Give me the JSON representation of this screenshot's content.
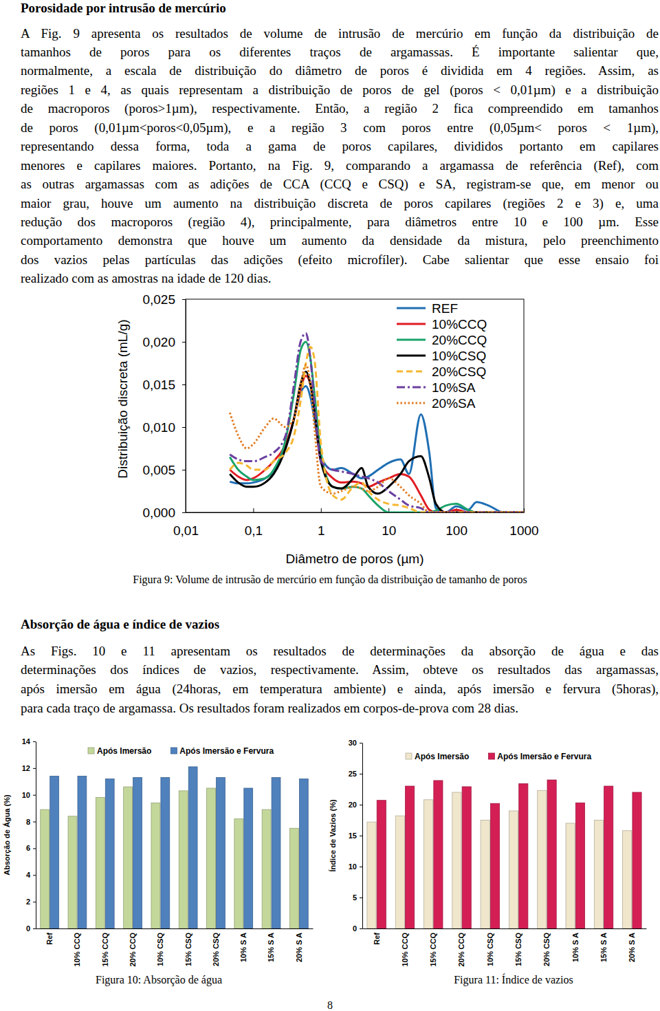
{
  "heading1": "Porosidade por intrusão de mercúrio",
  "paragraph1": [
    "A Fig. 9 apresenta os resultados de volume de intrusão de mercúrio em função da distribuição de",
    "tamanhos de poros para os diferentes traços de argamassas. É importante salientar que,",
    "normalmente, a escala de distribuição do diâmetro de poros é dividida em 4 regiões. Assim, as",
    "regiões 1 e 4, as quais representam a distribuição de poros de gel (poros < 0,01µm) e a distribuição",
    "de macroporos (poros>1µm), respectivamente. Então, a região 2 fica compreendido em tamanhos",
    "de poros (0,01µm<poros<0,05µm), e a região 3 com poros entre (0,05µm< poros < 1µm),",
    "representando dessa forma, toda a gama de poros capilares, divididos portanto em capilares",
    "menores e capilares maiores. Portanto, na Fig. 9, comparando a argamassa de referência (Ref), com",
    "as outras argamassas com as adições de CCA (CCQ e CSQ) e SA, registram-se que, em menor ou",
    "maior grau, houve um aumento na distribuição discreta de poros capilares (regiões 2 e 3) e, uma",
    "redução dos macroporos (região 4), principalmente, para diâmetros entre 10 e 100 µm. Esse",
    "comportamento demonstra que houve um aumento da densidade da mistura, pelo preenchimento",
    "dos vazios pelas partículas das adições (efeito microfíler). Cabe salientar que esse ensaio foi",
    "realizado com as amostras na idade de 120 dias."
  ],
  "heading2": "Absorção de água e índice de vazios",
  "paragraph2": [
    "As Figs. 10 e 11 apresentam os resultados de determinações da absorção de água e das",
    "determinações dos índices de vazios, respectivamente. Assim, obteve os resultados das argamassas,",
    "após imersão em água (24horas, em temperatura ambiente) e ainda, após imersão e fervura (5horas),",
    "para cada traço de argamassa. Os resultados foram realizados em corpos-de-prova com 28 dias."
  ],
  "figure_captions": [
    "Figura 9: Volume de intrusão de mercúrio em função da distribuição de tamanho de poros",
    "Figura 10: Absorção de água",
    "Figura 11: Índice de vazios"
  ],
  "page_number": "8",
  "chart_data": [
    {
      "type": "line",
      "x_label": "Diâmetro de poros (µm)",
      "y_label": "Distribuição discreta (mL/g)",
      "log": "x",
      "grid": false,
      "legend": "top right",
      "xlim": [
        0.01,
        1000
      ],
      "xticks": [
        {
          "value": 0.01,
          "label": "0,01"
        },
        {
          "value": 0.1,
          "label": "0,1"
        },
        1,
        10,
        100,
        1000
      ],
      "ylim": [
        0,
        0.025
      ],
      "yticks": [
        {
          "value": 0,
          "label": "0,000"
        },
        {
          "value": 0.005,
          "label": "0,005"
        },
        {
          "value": 0.01,
          "label": "0,010"
        },
        {
          "value": 0.015,
          "label": "0,015"
        },
        {
          "value": 0.02,
          "label": "0,020"
        },
        {
          "value": 0.025,
          "label": "0,025"
        }
      ],
      "x": [
        0.045,
        0.06,
        0.08,
        0.1,
        0.15,
        0.2,
        0.3,
        0.4,
        0.5,
        0.6,
        0.7,
        0.8,
        1,
        1.5,
        2,
        3,
        4,
        5,
        7,
        10,
        15,
        20,
        30,
        40,
        50,
        70,
        100,
        150,
        200,
        300,
        500,
        1000
      ],
      "series": [
        {
          "name": "REF",
          "color": "#1f6fb4",
          "line_style": "solid",
          "values": [
            0.0036,
            0.0034,
            0.0034,
            0.0035,
            0.004,
            0.0048,
            0.0075,
            0.011,
            0.014,
            0.0148,
            0.0135,
            0.011,
            0.0065,
            0.005,
            0.0052,
            0.0045,
            0.004,
            0.0042,
            0.005,
            0.0058,
            0.0062,
            0.0045,
            0.0115,
            0.007,
            0.0005,
            0,
            0.0007,
            0.0003,
            0.0012,
            0.0008,
            0,
            0
          ]
        },
        {
          "name": "10%CCQ",
          "color": "#e01c24",
          "line_style": "solid",
          "values": [
            0.005,
            0.0042,
            0.0038,
            0.004,
            0.005,
            0.006,
            0.008,
            0.011,
            0.0145,
            0.016,
            0.015,
            0.012,
            0.006,
            0.004,
            0.0035,
            0.0036,
            0.0034,
            0.003,
            0.0035,
            0.004,
            0.0045,
            0.0042,
            0.002,
            0.0003,
            0,
            0,
            0.0003,
            0,
            0,
            0,
            0,
            0
          ]
        },
        {
          "name": "20%CCQ",
          "color": "#1aa36b",
          "line_style": "solid",
          "values": [
            0.0065,
            0.005,
            0.0042,
            0.0038,
            0.004,
            0.005,
            0.0085,
            0.014,
            0.019,
            0.02,
            0.018,
            0.014,
            0.007,
            0.003,
            0.0028,
            0.003,
            0.0028,
            0.002,
            0.0008,
            0,
            0,
            0,
            0,
            0,
            0.0002,
            0.0008,
            0.001,
            0.0003,
            0,
            0,
            0,
            0
          ]
        },
        {
          "name": "10%CSQ",
          "color": "#000000",
          "line_style": "solid",
          "values": [
            0.0045,
            0.0035,
            0.003,
            0.003,
            0.0035,
            0.0045,
            0.0075,
            0.011,
            0.015,
            0.0165,
            0.015,
            0.012,
            0.006,
            0.003,
            0.0028,
            0.004,
            0.0052,
            0.003,
            0.0022,
            0.003,
            0.0045,
            0.006,
            0.0066,
            0.004,
            0.001,
            0,
            0,
            0,
            0,
            0,
            0,
            0
          ]
        },
        {
          "name": "20%CSQ",
          "color": "#f5b731",
          "line_style": "dashed",
          "values": [
            0.005,
            0.0058,
            0.0055,
            0.005,
            0.005,
            0.006,
            0.007,
            0.009,
            0.013,
            0.0175,
            0.0194,
            0.018,
            0.008,
            0.002,
            0.0015,
            0.003,
            0.0035,
            0.0025,
            0.0015,
            0.001,
            0.0008,
            0.0005,
            0,
            0,
            0,
            0,
            0,
            0,
            0,
            0,
            0,
            0
          ]
        },
        {
          "name": "10%SA",
          "color": "#6b3fa0",
          "line_style": "dashdot",
          "values": [
            0.0068,
            0.0062,
            0.006,
            0.006,
            0.0065,
            0.007,
            0.009,
            0.015,
            0.02,
            0.021,
            0.018,
            0.013,
            0.006,
            0.005,
            0.0048,
            0.0045,
            0.0042,
            0.004,
            0.0035,
            0.0025,
            0.0015,
            0.0008,
            0.0005,
            0,
            0,
            0,
            0,
            0,
            0,
            0,
            0,
            0
          ]
        },
        {
          "name": "20%SA",
          "color": "#e07b20",
          "line_style": "dotted",
          "values": [
            0.0117,
            0.009,
            0.0075,
            0.008,
            0.01,
            0.011,
            0.01,
            0.011,
            0.015,
            0.0173,
            0.015,
            0.01,
            0.003,
            0.0022,
            0.0025,
            0.003,
            0.0028,
            0.0025,
            0.003,
            0.004,
            0.003,
            0.002,
            0.001,
            0,
            0,
            0,
            0,
            0,
            0,
            0,
            0,
            0
          ]
        }
      ]
    },
    {
      "type": "bar",
      "y_label": "Absorção de Água (%)",
      "grid": false,
      "legend": "top",
      "categories": [
        "Ref",
        "10% CCQ",
        "15% CCQ",
        "20% CCQ",
        "10% CSQ",
        "15% CSQ",
        "20% CSQ",
        "10% S A",
        "15% S A",
        "20% S A"
      ],
      "ylim": [
        0,
        14
      ],
      "yticks": [
        0,
        2,
        4,
        6,
        8,
        10,
        12,
        14
      ],
      "series": [
        {
          "name": "Após Imersão",
          "color": "#c4d79b",
          "values": [
            8.9,
            8.4,
            9.8,
            10.6,
            9.4,
            10.3,
            10.5,
            8.2,
            8.9,
            7.5
          ]
        },
        {
          "name": "Após Imersão e Fervura",
          "color": "#4f81bd",
          "values": [
            11.4,
            11.4,
            11.2,
            11.3,
            11.3,
            12.1,
            11.3,
            10.5,
            11.3,
            11.2
          ]
        }
      ]
    },
    {
      "type": "bar",
      "y_label": "Índice de Vazios (%)",
      "grid": false,
      "legend": "top",
      "categories": [
        "Ref",
        "10% CCQ",
        "15% CCQ",
        "20% CCQ",
        "10% CSQ",
        "15% CSQ",
        "20% CSQ",
        "10% S A",
        "15% S A",
        "20% S A"
      ],
      "ylim": [
        0,
        30
      ],
      "yticks": [
        0,
        5,
        10,
        15,
        20,
        25,
        30
      ],
      "series": [
        {
          "name": "Após Imersão",
          "color": "#efe6cc",
          "values": [
            17.2,
            18.2,
            20.8,
            22.0,
            17.5,
            19.0,
            22.3,
            17.0,
            17.5,
            15.8
          ]
        },
        {
          "name": "Após Imersão e Fervura",
          "color": "#d41f55",
          "values": [
            20.7,
            23.0,
            23.9,
            22.9,
            20.2,
            23.4,
            24.0,
            20.3,
            23.0,
            22.0
          ]
        }
      ]
    }
  ]
}
